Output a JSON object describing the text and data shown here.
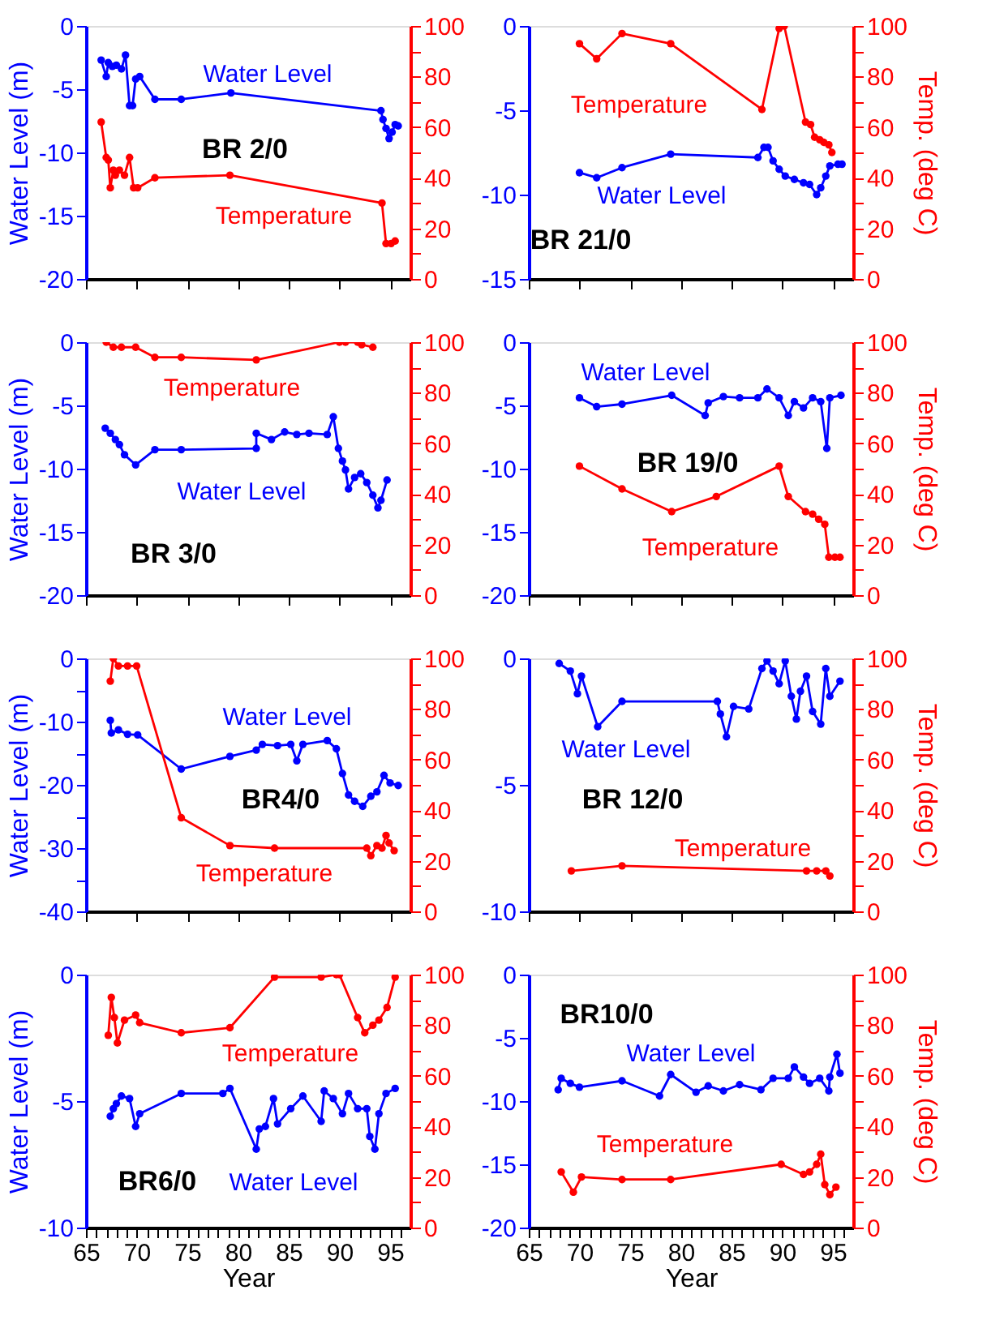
{
  "chart_data": [
    {
      "type": "line",
      "title": "BR 2/0",
      "ylabel": "Water Level (m)",
      "xlim": [
        65,
        97
      ],
      "xticks": [
        65,
        70,
        75,
        80,
        85,
        90,
        95
      ],
      "ylim": [
        -20,
        0
      ],
      "yticks": [
        -20,
        -15,
        -10,
        -5,
        0
      ],
      "y2lim": [
        0,
        100
      ],
      "y2ticks": [
        0,
        {
          "value": 10,
          "label": null
        },
        20,
        {
          "value": 30,
          "label": null
        },
        40,
        {
          "value": 50,
          "label": null
        },
        60,
        {
          "value": 70,
          "label": null
        },
        80,
        {
          "value": 90,
          "label": null
        },
        100
      ],
      "tick_labels": "y",
      "marker": "circle",
      "line_style": "solid",
      "series": [
        {
          "name": "Water Level",
          "color": "#0000ff",
          "x": [
            66.5,
            67,
            67.2,
            67.6,
            68,
            68.5,
            68.9,
            69.3,
            69.6,
            69.9,
            70.3,
            71.8,
            74.4,
            79.3,
            94.1,
            94.3,
            94.6,
            94.9,
            95.2,
            95.5,
            95.8
          ],
          "values": [
            -2.7,
            -4,
            -2.9,
            -3.2,
            -3.1,
            -3.4,
            -2.3,
            -6.3,
            -6.3,
            -4.2,
            -4,
            -5.8,
            -5.8,
            -5.3,
            -6.7,
            -7.4,
            -8.1,
            -8.9,
            -8.4,
            -7.8,
            -7.9
          ]
        },
        {
          "name": "Temperature",
          "color": "#ff0000",
          "axis": "y2",
          "x": [
            66.5,
            67,
            67.2,
            67.4,
            67.7,
            67.9,
            68.3,
            68.8,
            69.3,
            69.7,
            70.1,
            71.8,
            79.2,
            94.2,
            94.6,
            95.1,
            95.5
          ],
          "values": [
            62,
            48,
            47,
            36,
            43,
            41,
            43,
            41,
            48,
            36,
            36,
            40,
            41,
            30,
            14,
            14,
            15
          ]
        }
      ]
    },
    {
      "type": "line",
      "title": "BR 21/0",
      "y2label": "Temp. (deg C)",
      "xlim": [
        65,
        97
      ],
      "xticks": [
        65,
        70,
        75,
        80,
        85,
        90,
        95
      ],
      "ylim": [
        -15,
        0
      ],
      "yticks": [
        -15,
        -10,
        -5,
        0
      ],
      "y2lim": [
        0,
        100
      ],
      "y2ticks": [
        0,
        {
          "value": 10,
          "label": null
        },
        20,
        {
          "value": 30,
          "label": null
        },
        40,
        {
          "value": 50,
          "label": null
        },
        60,
        {
          "value": 70,
          "label": null
        },
        80,
        {
          "value": 90,
          "label": null
        },
        100
      ],
      "tick_labels": "y",
      "marker": "circle",
      "series": [
        {
          "name": "Water Level",
          "color": "#0000ff",
          "x": [
            70,
            71.7,
            74.2,
            79,
            87.6,
            88.2,
            88.6,
            89.1,
            89.7,
            90.3,
            91.2,
            92.1,
            92.7,
            93.4,
            93.8,
            94.3,
            94.7,
            95.5,
            95.9
          ],
          "values": [
            -8.7,
            -9,
            -8.4,
            -7.6,
            -7.8,
            -7.2,
            -7.2,
            -8,
            -8.5,
            -8.9,
            -9.1,
            -9.3,
            -9.4,
            -10,
            -9.6,
            -8.9,
            -8.3,
            -8.2,
            -8.2
          ]
        },
        {
          "name": "Temperature",
          "color": "#ff0000",
          "axis": "y2",
          "x": [
            70,
            71.7,
            74.2,
            79,
            88,
            89.7,
            90.2,
            92.3,
            92.8,
            93.2,
            93.7,
            94.1,
            94.6,
            94.9
          ],
          "values": [
            93,
            87,
            97,
            93,
            67,
            99,
            100,
            62,
            61,
            56,
            55,
            54,
            53,
            50
          ]
        }
      ]
    },
    {
      "type": "line",
      "title": "BR 3/0",
      "ylabel": "Water Level (m)",
      "xlim": [
        65,
        97
      ],
      "xticks": [
        65,
        70,
        75,
        80,
        85,
        90,
        95
      ],
      "ylim": [
        -20,
        0
      ],
      "yticks": [
        -20,
        -15,
        -10,
        -5,
        0
      ],
      "y2lim": [
        0,
        100
      ],
      "y2ticks": [
        0,
        {
          "value": 10,
          "label": null
        },
        20,
        {
          "value": 30,
          "label": null
        },
        40,
        {
          "value": 50,
          "label": null
        },
        60,
        {
          "value": 70,
          "label": null
        },
        80,
        {
          "value": 90,
          "label": null
        },
        100
      ],
      "tick_labels": "y",
      "marker": "circle",
      "series": [
        {
          "name": "Water Level",
          "color": "#0000ff",
          "x": [
            66.9,
            67.4,
            67.9,
            68.3,
            68.8,
            69.9,
            71.8,
            74.4,
            81.8,
            81.8,
            83.3,
            84.6,
            85.8,
            87,
            88.8,
            89.4,
            89.9,
            90.3,
            90.6,
            90.9,
            91.5,
            92.1,
            92.7,
            93.3,
            93.8,
            94.1,
            94.7
          ],
          "values": [
            -6.8,
            -7.2,
            -7.7,
            -8.1,
            -8.9,
            -9.7,
            -8.5,
            -8.5,
            -8.4,
            -7.2,
            -7.7,
            -7.1,
            -7.3,
            -7.2,
            -7.3,
            -5.9,
            -8.4,
            -9.4,
            -10.1,
            -11.6,
            -10.7,
            -10.4,
            -11.1,
            -12.1,
            -13.1,
            -12.5,
            -10.9
          ]
        },
        {
          "name": "Temperature",
          "color": "#ff0000",
          "axis": "y2",
          "x": [
            67,
            67.7,
            68.5,
            69.9,
            71.8,
            74.4,
            81.8,
            90,
            90.6,
            91.8,
            92.2,
            93.3
          ],
          "values": [
            100,
            98,
            98,
            98,
            94,
            94,
            93,
            100,
            100,
            100,
            99,
            98
          ]
        }
      ]
    },
    {
      "type": "line",
      "title": "BR 19/0",
      "y2label": "Temp. (deg C)",
      "xlim": [
        65,
        97
      ],
      "xticks": [
        65,
        70,
        75,
        80,
        85,
        90,
        95
      ],
      "ylim": [
        -20,
        0
      ],
      "yticks": [
        -20,
        -15,
        -10,
        -5,
        0
      ],
      "y2lim": [
        0,
        100
      ],
      "y2ticks": [
        0,
        {
          "value": 10,
          "label": null
        },
        20,
        {
          "value": 30,
          "label": null
        },
        40,
        {
          "value": 50,
          "label": null
        },
        60,
        {
          "value": 70,
          "label": null
        },
        80,
        {
          "value": 90,
          "label": null
        },
        100
      ],
      "tick_labels": "y",
      "marker": "circle",
      "series": [
        {
          "name": "Water Level",
          "color": "#0000ff",
          "x": [
            70,
            71.7,
            74.2,
            79.1,
            82.4,
            82.7,
            84.2,
            85.8,
            87.6,
            88.5,
            89.7,
            90.6,
            91.2,
            92.1,
            93,
            93.8,
            94.4,
            94.7,
            95.8
          ],
          "values": [
            -4.4,
            -5.1,
            -4.9,
            -4.2,
            -5.8,
            -4.8,
            -4.3,
            -4.4,
            -4.4,
            -3.7,
            -4.4,
            -5.8,
            -4.7,
            -5.2,
            -4.4,
            -4.7,
            -8.4,
            -4.4,
            -4.2
          ]
        },
        {
          "name": "Temperature",
          "color": "#ff0000",
          "axis": "y2",
          "x": [
            70,
            74.2,
            79.1,
            83.5,
            89.7,
            90.6,
            92.3,
            93,
            93.6,
            94.2,
            94.6,
            95.2,
            95.7
          ],
          "values": [
            51,
            42,
            33,
            39,
            51,
            39,
            33,
            32,
            30,
            28,
            15,
            15,
            15
          ]
        }
      ]
    },
    {
      "type": "line",
      "title": "BR4/0",
      "ylabel": "Water Level (m)",
      "xlim": [
        65,
        97
      ],
      "xticks": [
        65,
        70,
        75,
        80,
        85,
        90,
        95
      ],
      "ylim": [
        -40,
        0
      ],
      "yticks": [
        -40,
        {
          "value": -35,
          "label": null
        },
        -30,
        {
          "value": -25,
          "label": null
        },
        -20,
        {
          "value": -15,
          "label": null
        },
        -10,
        {
          "value": -5,
          "label": null
        },
        0
      ],
      "y2lim": [
        0,
        100
      ],
      "y2ticks": [
        0,
        {
          "value": 10,
          "label": null
        },
        20,
        {
          "value": 30,
          "label": null
        },
        40,
        {
          "value": 50,
          "label": null
        },
        60,
        {
          "value": 70,
          "label": null
        },
        80,
        {
          "value": 90,
          "label": null
        },
        100
      ],
      "tick_labels": "y",
      "marker": "circle",
      "series": [
        {
          "name": "Water Level",
          "color": "#0000ff",
          "x": [
            67.4,
            67.5,
            68.2,
            69.1,
            70.1,
            74.4,
            79.2,
            81.8,
            82.4,
            83.9,
            85.2,
            85.8,
            86.4,
            88.8,
            89.7,
            90.3,
            90.9,
            91.5,
            92.3,
            93.1,
            93.7,
            94.4,
            95,
            95.8
          ],
          "values": [
            -9.8,
            -11.8,
            -11.3,
            -12,
            -12.1,
            -17.5,
            -15.5,
            -14.5,
            -13.6,
            -13.8,
            -13.6,
            -16.2,
            -13.6,
            -13,
            -14.3,
            -18.2,
            -21.6,
            -22.6,
            -23.4,
            -21.8,
            -21.1,
            -18.5,
            -19.7,
            -20.1
          ]
        },
        {
          "name": "Temperature",
          "color": "#ff0000",
          "axis": "y2",
          "x": [
            67.4,
            67.7,
            68.2,
            69.1,
            70,
            74.4,
            79.2,
            83.6,
            92.7,
            93.1,
            93.7,
            94.2,
            94.6,
            94.9,
            95.4
          ],
          "values": [
            91,
            100,
            97,
            97,
            97,
            37,
            26,
            25,
            25,
            22,
            26,
            25,
            30,
            27,
            24
          ]
        }
      ]
    },
    {
      "type": "line",
      "title": "BR 12/0",
      "y2label": "Temp. (deg C)",
      "xlim": [
        65,
        97
      ],
      "xticks": [
        65,
        70,
        75,
        80,
        85,
        90,
        95
      ],
      "ylim": [
        -10,
        0
      ],
      "yticks": [
        -10,
        -5,
        0
      ],
      "y2lim": [
        0,
        100
      ],
      "y2ticks": [
        0,
        {
          "value": 10,
          "label": null
        },
        20,
        {
          "value": 30,
          "label": null
        },
        40,
        {
          "value": 50,
          "label": null
        },
        60,
        {
          "value": 70,
          "label": null
        },
        80,
        {
          "value": 90,
          "label": null
        },
        100
      ],
      "tick_labels": "y",
      "marker": "circle",
      "series": [
        {
          "name": "Water Level",
          "color": "#0000ff",
          "x": [
            68,
            69.1,
            69.8,
            70.2,
            71.8,
            74.2,
            83.6,
            83.9,
            84.5,
            85.2,
            86.7,
            88,
            88.5,
            89.1,
            89.7,
            90.3,
            90.9,
            91.4,
            91.8,
            92.4,
            93,
            93.8,
            94.3,
            94.7,
            95.7
          ],
          "values": [
            -0.2,
            -0.5,
            -1.4,
            -0.7,
            -2.7,
            -1.7,
            -1.7,
            -2.2,
            -3.1,
            -1.9,
            -2,
            -0.4,
            -0.1,
            -0.5,
            -1,
            -0.1,
            -1.5,
            -2.4,
            -1.3,
            -0.7,
            -2.1,
            -2.6,
            -0.4,
            -1.5,
            -0.9
          ]
        },
        {
          "name": "Temperature",
          "color": "#ff0000",
          "axis": "y2",
          "x": [
            69.2,
            74.2,
            92.4,
            93.4,
            94.3,
            94.7
          ],
          "values": [
            16,
            18,
            16,
            16,
            16,
            14
          ]
        }
      ]
    },
    {
      "type": "line",
      "title": "BR6/0",
      "ylabel": "Water Level (m)",
      "xlabel": "Year",
      "xlim": [
        65,
        97
      ],
      "xticks": [
        65,
        {
          "value": 66,
          "label": null
        },
        {
          "value": 67,
          "label": null
        },
        {
          "value": 68,
          "label": null
        },
        {
          "value": 69,
          "label": null
        },
        70,
        {
          "value": 71,
          "label": null
        },
        {
          "value": 72,
          "label": null
        },
        {
          "value": 73,
          "label": null
        },
        {
          "value": 74,
          "label": null
        },
        75,
        {
          "value": 76,
          "label": null
        },
        {
          "value": 77,
          "label": null
        },
        {
          "value": 78,
          "label": null
        },
        {
          "value": 79,
          "label": null
        },
        80,
        {
          "value": 81,
          "label": null
        },
        {
          "value": 82,
          "label": null
        },
        {
          "value": 83,
          "label": null
        },
        {
          "value": 84,
          "label": null
        },
        85,
        {
          "value": 86,
          "label": null
        },
        {
          "value": 87,
          "label": null
        },
        {
          "value": 88,
          "label": null
        },
        {
          "value": 89,
          "label": null
        },
        90,
        {
          "value": 91,
          "label": null
        },
        {
          "value": 92,
          "label": null
        },
        {
          "value": 93,
          "label": null
        },
        {
          "value": 94,
          "label": null
        },
        95,
        {
          "value": 96,
          "label": null
        }
      ],
      "ylim": [
        -10,
        0
      ],
      "yticks": [
        -10,
        -5,
        0
      ],
      "y2lim": [
        0,
        100
      ],
      "y2ticks": [
        0,
        {
          "value": 10,
          "label": null
        },
        20,
        {
          "value": 30,
          "label": null
        },
        40,
        {
          "value": 50,
          "label": null
        },
        60,
        {
          "value": 70,
          "label": null
        },
        80,
        {
          "value": 90,
          "label": null
        },
        100
      ],
      "marker": "circle",
      "series": [
        {
          "name": "Water Level",
          "color": "#0000ff",
          "x": [
            67.4,
            67.7,
            68,
            68.5,
            69.3,
            69.9,
            70.3,
            74.4,
            78.5,
            79.2,
            81.8,
            82.1,
            82.7,
            83.5,
            83.9,
            85.2,
            86.4,
            88.2,
            88.5,
            89.4,
            90.3,
            90.9,
            91.8,
            92.7,
            93,
            93.5,
            93.9,
            94.6,
            95.5
          ],
          "values": [
            -5.6,
            -5.3,
            -5.1,
            -4.8,
            -4.9,
            -6,
            -5.5,
            -4.7,
            -4.7,
            -4.5,
            -6.9,
            -6.1,
            -6,
            -4.9,
            -5.9,
            -5.3,
            -4.8,
            -5.8,
            -4.6,
            -4.9,
            -5.5,
            -4.7,
            -5.3,
            -5.3,
            -6.4,
            -6.9,
            -5.5,
            -4.7,
            -4.5
          ]
        },
        {
          "name": "Temperature",
          "color": "#ff0000",
          "axis": "y2",
          "x": [
            67.2,
            67.5,
            67.8,
            68.1,
            68.8,
            69.9,
            70.3,
            74.4,
            79.2,
            83.6,
            88.2,
            89.7,
            90,
            91.8,
            92.5,
            93.3,
            93.9,
            94.7,
            95.5
          ],
          "values": [
            76,
            91,
            83,
            73,
            82,
            84,
            81,
            77,
            79,
            99,
            99,
            100,
            100,
            83,
            77,
            80,
            82,
            87,
            99
          ]
        }
      ]
    },
    {
      "type": "line",
      "title": "BR10/0",
      "y2label": "Temp. (deg C)",
      "xlabel": "Year",
      "xlim": [
        65,
        97
      ],
      "xticks": [
        65,
        {
          "value": 66,
          "label": null
        },
        {
          "value": 67,
          "label": null
        },
        {
          "value": 68,
          "label": null
        },
        {
          "value": 69,
          "label": null
        },
        70,
        {
          "value": 71,
          "label": null
        },
        {
          "value": 72,
          "label": null
        },
        {
          "value": 73,
          "label": null
        },
        {
          "value": 74,
          "label": null
        },
        75,
        {
          "value": 76,
          "label": null
        },
        {
          "value": 77,
          "label": null
        },
        {
          "value": 78,
          "label": null
        },
        {
          "value": 79,
          "label": null
        },
        80,
        {
          "value": 81,
          "label": null
        },
        {
          "value": 82,
          "label": null
        },
        {
          "value": 83,
          "label": null
        },
        {
          "value": 84,
          "label": null
        },
        85,
        {
          "value": 86,
          "label": null
        },
        {
          "value": 87,
          "label": null
        },
        {
          "value": 88,
          "label": null
        },
        {
          "value": 89,
          "label": null
        },
        90,
        {
          "value": 91,
          "label": null
        },
        {
          "value": 92,
          "label": null
        },
        {
          "value": 93,
          "label": null
        },
        {
          "value": 94,
          "label": null
        },
        95,
        {
          "value": 96,
          "label": null
        }
      ],
      "ylim": [
        -20,
        0
      ],
      "yticks": [
        -20,
        -15,
        -10,
        -5,
        0
      ],
      "y2lim": [
        0,
        100
      ],
      "y2ticks": [
        0,
        {
          "value": 10,
          "label": null
        },
        20,
        {
          "value": 30,
          "label": null
        },
        40,
        {
          "value": 50,
          "label": null
        },
        60,
        {
          "value": 70,
          "label": null
        },
        80,
        {
          "value": 90,
          "label": null
        },
        100
      ],
      "marker": "circle",
      "series": [
        {
          "name": "Water Level",
          "color": "#0000ff",
          "x": [
            67.9,
            68.2,
            69.1,
            70,
            74.2,
            77.9,
            79,
            81.5,
            82.7,
            84.2,
            85.8,
            87.9,
            89.1,
            90.6,
            91.2,
            92.1,
            92.7,
            93.7,
            94.6,
            94.7,
            95.4,
            95.7
          ],
          "values": [
            -9.1,
            -8.2,
            -8.6,
            -8.9,
            -8.4,
            -9.6,
            -7.9,
            -9.3,
            -8.8,
            -9.2,
            -8.7,
            -9.1,
            -8.2,
            -8.2,
            -7.3,
            -8.1,
            -8.6,
            -8.2,
            -9.2,
            -8.1,
            -6.3,
            -7.8
          ]
        },
        {
          "name": "Temperature",
          "color": "#ff0000",
          "axis": "y2",
          "x": [
            68.2,
            69.4,
            70.2,
            74.2,
            79,
            89.9,
            92.1,
            92.7,
            93.4,
            93.8,
            94.2,
            94.7,
            95.3
          ],
          "values": [
            22,
            14,
            20,
            19,
            19,
            25,
            21,
            22,
            25,
            29,
            17,
            13,
            16
          ]
        }
      ]
    }
  ]
}
